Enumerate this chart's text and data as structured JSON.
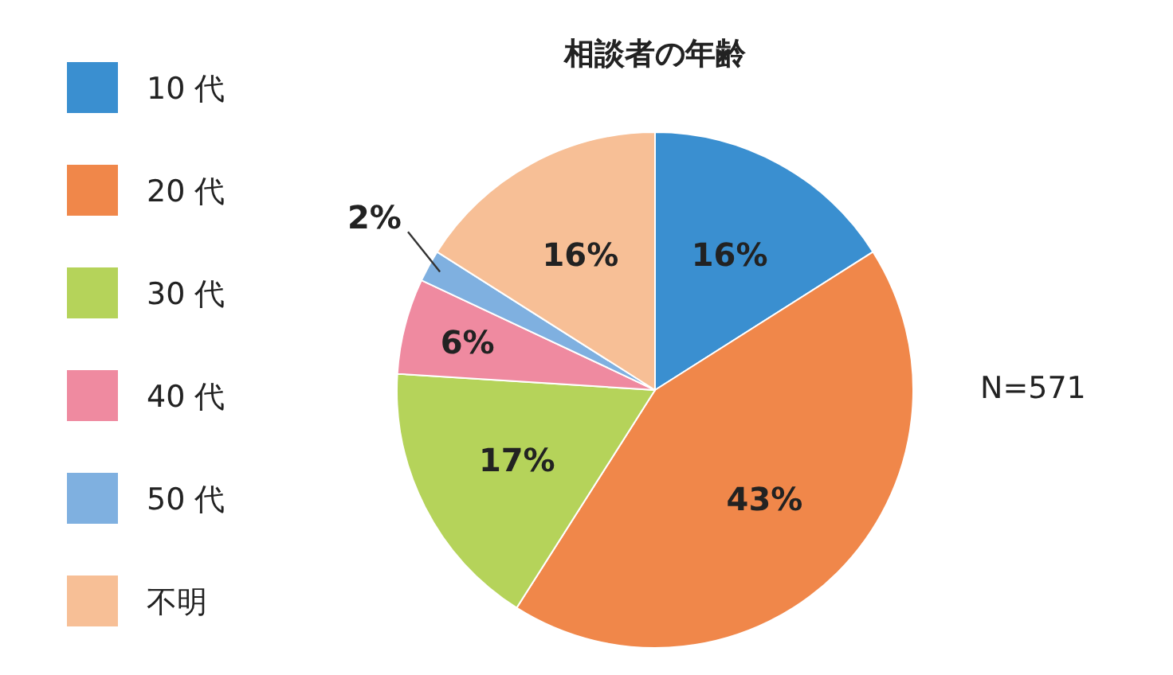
{
  "chart_data": {
    "type": "pie",
    "title": "相談者の年齢",
    "categories": [
      "10 代",
      "20 代",
      "30 代",
      "40 代",
      "50 代",
      "不明"
    ],
    "values": [
      16,
      43,
      17,
      6,
      2,
      16
    ],
    "colors": [
      "#3a8fd0",
      "#f0874a",
      "#b5d35a",
      "#ef8aa0",
      "#7fb0e0",
      "#f7bf96"
    ],
    "value_labels": [
      "16%",
      "43%",
      "17%",
      "6%",
      "2%",
      "16%"
    ],
    "legend": "left",
    "annotations": [
      "N=571"
    ]
  }
}
